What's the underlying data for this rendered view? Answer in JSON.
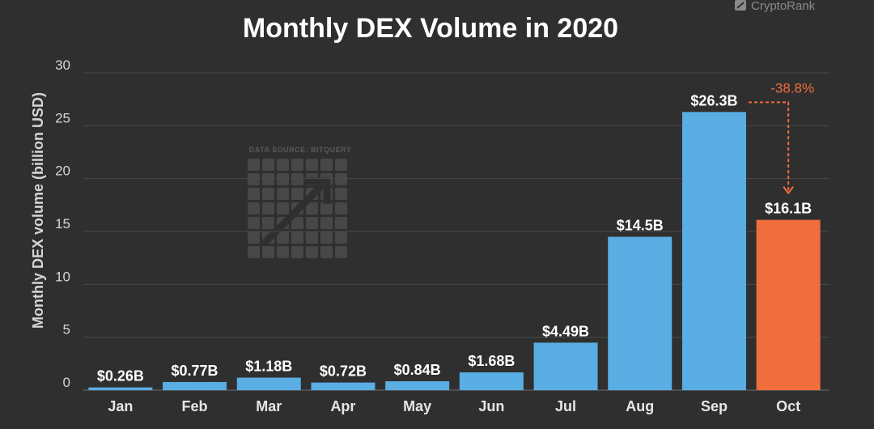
{
  "brand": {
    "name": "CryptoRank"
  },
  "watermark": {
    "source_text": "DATA SOURCE: BITQUERY"
  },
  "colors": {
    "bar": "#5aaee3",
    "highlight": "#f26d3d",
    "background": "#2f2f2f",
    "grid": "#4a4a4a"
  },
  "chart_data": {
    "type": "bar",
    "title": "Monthly DEX Volume in 2020",
    "xlabel": "",
    "ylabel": "Monthly DEX volume (billion USD)",
    "ylim": [
      0,
      30
    ],
    "yticks": [
      0,
      5,
      10,
      15,
      20,
      25,
      30
    ],
    "grid": true,
    "categories": [
      "Jan",
      "Feb",
      "Mar",
      "Apr",
      "May",
      "Jun",
      "Jul",
      "Aug",
      "Sep",
      "Oct"
    ],
    "values": [
      0.26,
      0.77,
      1.18,
      0.72,
      0.84,
      1.68,
      4.49,
      14.5,
      26.3,
      16.1
    ],
    "data_labels": [
      "$0.26B",
      "$0.77B",
      "$1.18B",
      "$0.72B",
      "$0.84B",
      "$1.68B",
      "$4.49B",
      "$14.5B",
      "$26.3B",
      "$16.1B"
    ],
    "highlight_category": "Oct",
    "annotation": {
      "text": "-38.8%",
      "from": "Sep",
      "to": "Oct"
    }
  }
}
